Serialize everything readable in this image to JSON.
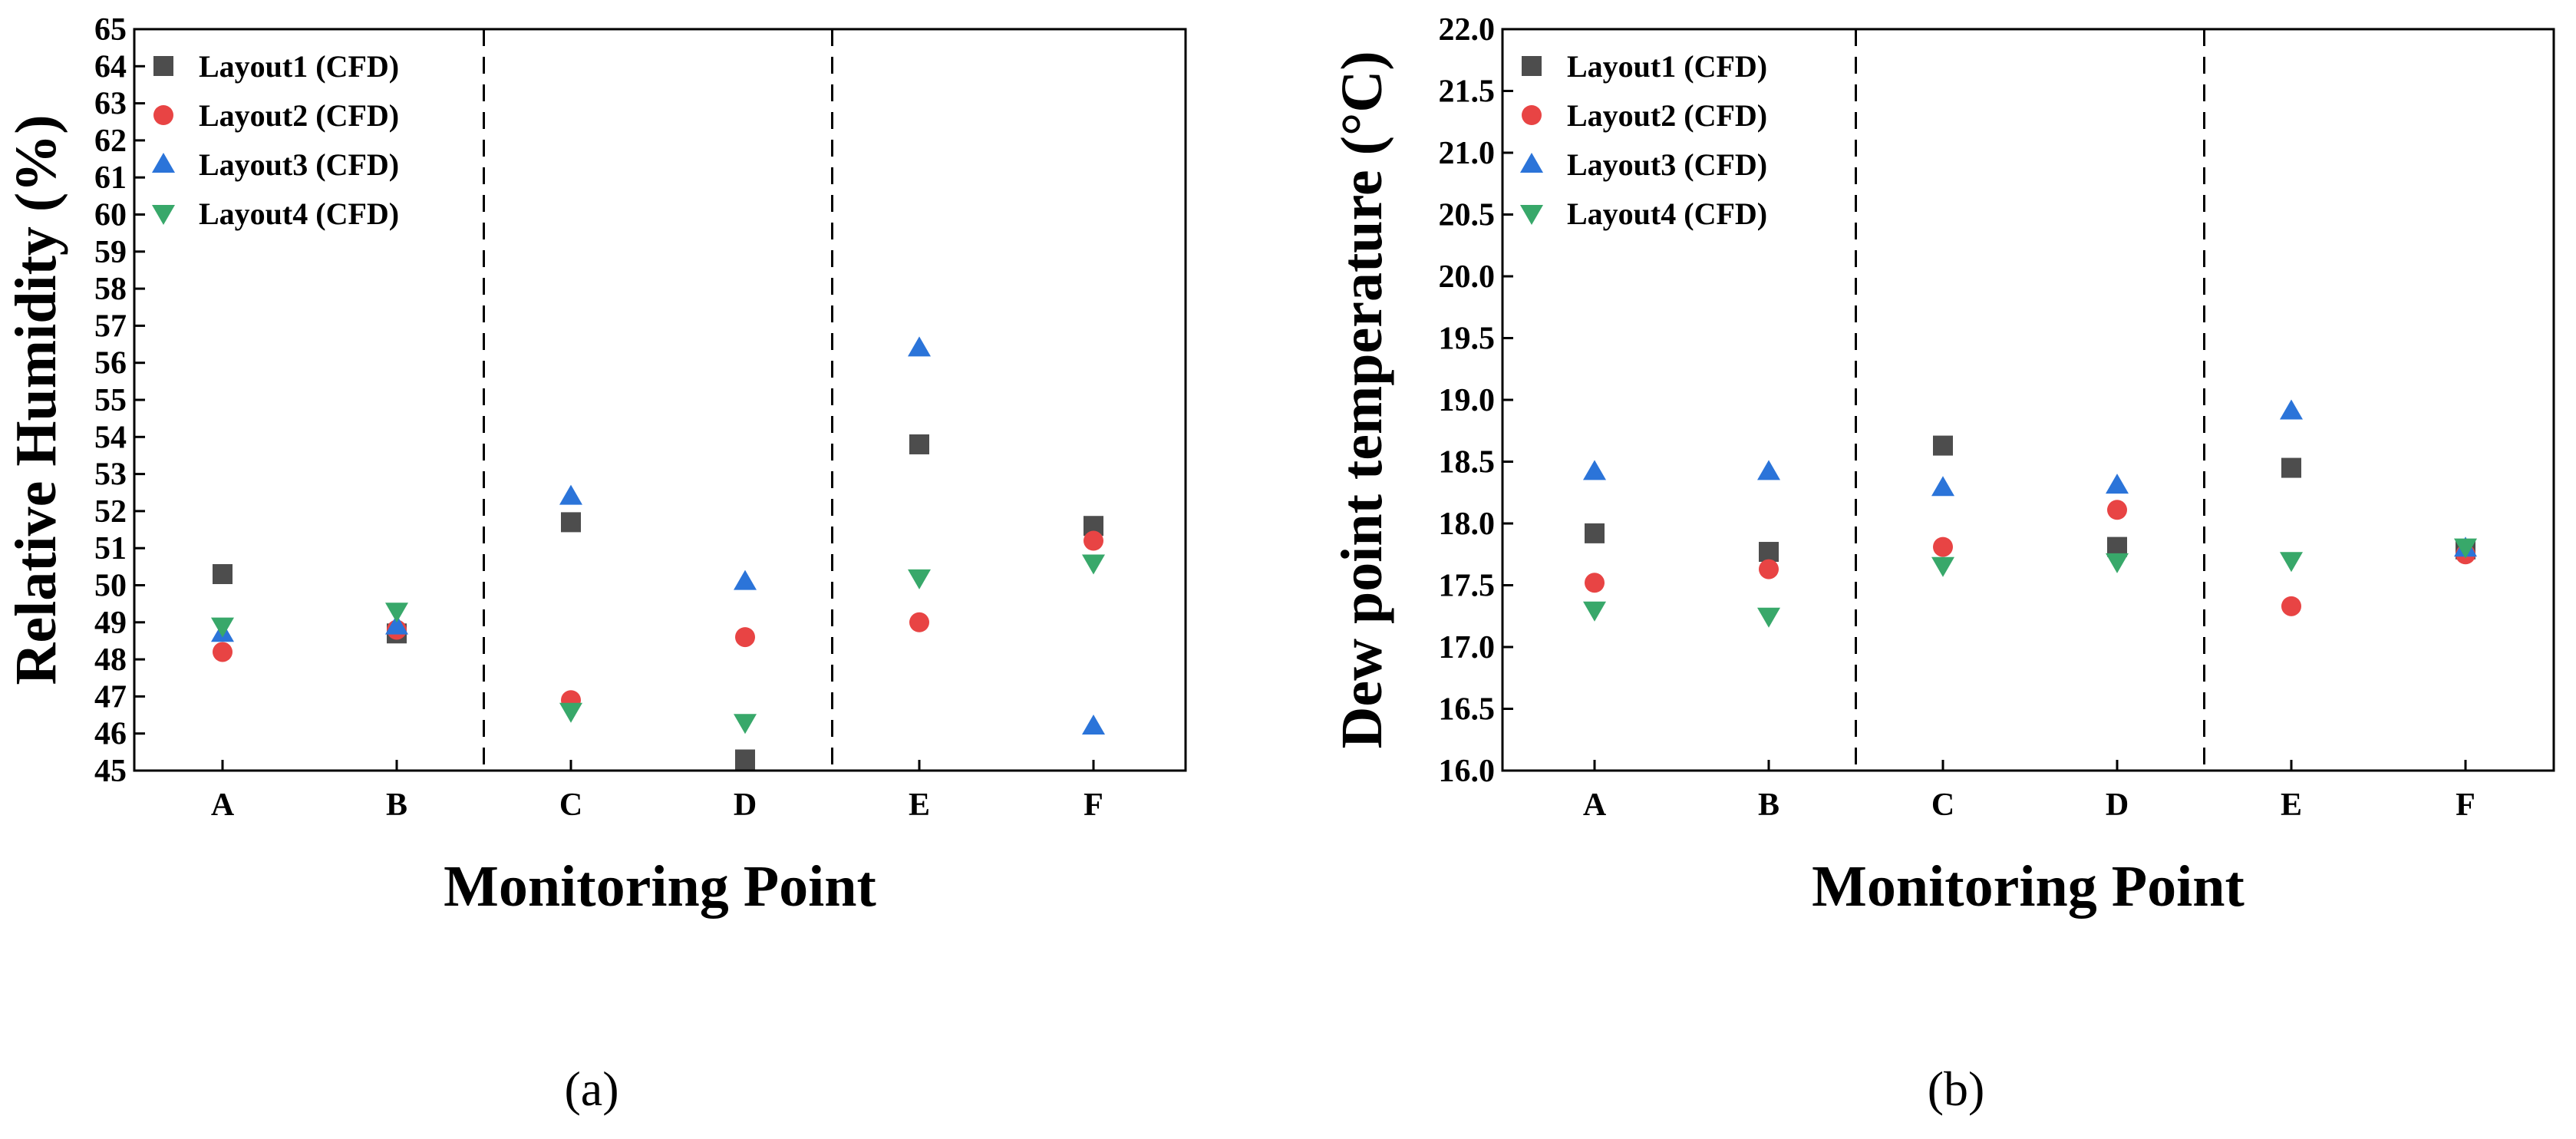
{
  "chart_data": [
    {
      "type": "scatter",
      "panel_label": "(a)",
      "xlabel": "Monitoring Point",
      "ylabel": "Relative Humidity (%)",
      "categories": [
        "A",
        "B",
        "C",
        "D",
        "E",
        "F"
      ],
      "ylim": [
        45,
        65
      ],
      "yticks": [
        "45",
        "46",
        "47",
        "48",
        "49",
        "50",
        "51",
        "52",
        "53",
        "54",
        "55",
        "56",
        "57",
        "58",
        "59",
        "60",
        "61",
        "62",
        "63",
        "64",
        "65"
      ],
      "yticks_values": [
        45,
        46,
        47,
        48,
        49,
        50,
        51,
        52,
        53,
        54,
        55,
        56,
        57,
        58,
        59,
        60,
        61,
        62,
        63,
        64,
        65
      ],
      "grid": false,
      "legend_position": "top-left",
      "dividers_after": [
        "B",
        "D"
      ],
      "series": [
        {
          "name": "Layout1 (CFD)",
          "marker": "square",
          "color": "#4d4d4d",
          "values": [
            50.3,
            48.7,
            51.7,
            45.3,
            53.8,
            51.6
          ]
        },
        {
          "name": "Layout2 (CFD)",
          "marker": "circle",
          "color": "#e84444",
          "values": [
            48.2,
            48.8,
            46.9,
            48.6,
            49.0,
            51.2
          ]
        },
        {
          "name": "Layout3 (CFD)",
          "marker": "triangle-up",
          "color": "#2b74d9",
          "values": [
            48.7,
            48.9,
            52.4,
            50.1,
            56.4,
            46.2
          ]
        },
        {
          "name": "Layout4 (CFD)",
          "marker": "triangle-down",
          "color": "#38a86a",
          "values": [
            48.9,
            49.3,
            46.6,
            46.3,
            50.2,
            50.6
          ]
        }
      ]
    },
    {
      "type": "scatter",
      "panel_label": "(b)",
      "xlabel": "Monitoring Point",
      "ylabel": "Dew point temperature (°C)",
      "categories": [
        "A",
        "B",
        "C",
        "D",
        "E",
        "F"
      ],
      "ylim": [
        16.0,
        22.0
      ],
      "yticks": [
        "16.0",
        "16.5",
        "17.0",
        "17.5",
        "18.0",
        "18.5",
        "19.0",
        "19.5",
        "20.0",
        "20.5",
        "21.0",
        "21.5",
        "22.0"
      ],
      "yticks_values": [
        16.0,
        16.5,
        17.0,
        17.5,
        18.0,
        18.5,
        19.0,
        19.5,
        20.0,
        20.5,
        21.0,
        21.5,
        22.0
      ],
      "grid": false,
      "legend_position": "top-left",
      "dividers_after": [
        "B",
        "D"
      ],
      "series": [
        {
          "name": "Layout1 (CFD)",
          "marker": "square",
          "color": "#4d4d4d",
          "values": [
            17.92,
            17.77,
            18.63,
            17.81,
            18.45,
            17.79
          ]
        },
        {
          "name": "Layout2 (CFD)",
          "marker": "circle",
          "color": "#e84444",
          "values": [
            17.52,
            17.63,
            17.81,
            18.11,
            17.33,
            17.75
          ]
        },
        {
          "name": "Layout3 (CFD)",
          "marker": "triangle-up",
          "color": "#2b74d9",
          "values": [
            18.42,
            18.42,
            18.29,
            18.31,
            18.91,
            17.8
          ]
        },
        {
          "name": "Layout4 (CFD)",
          "marker": "triangle-down",
          "color": "#38a86a",
          "values": [
            17.3,
            17.25,
            17.66,
            17.69,
            17.7,
            17.81
          ]
        }
      ]
    }
  ]
}
